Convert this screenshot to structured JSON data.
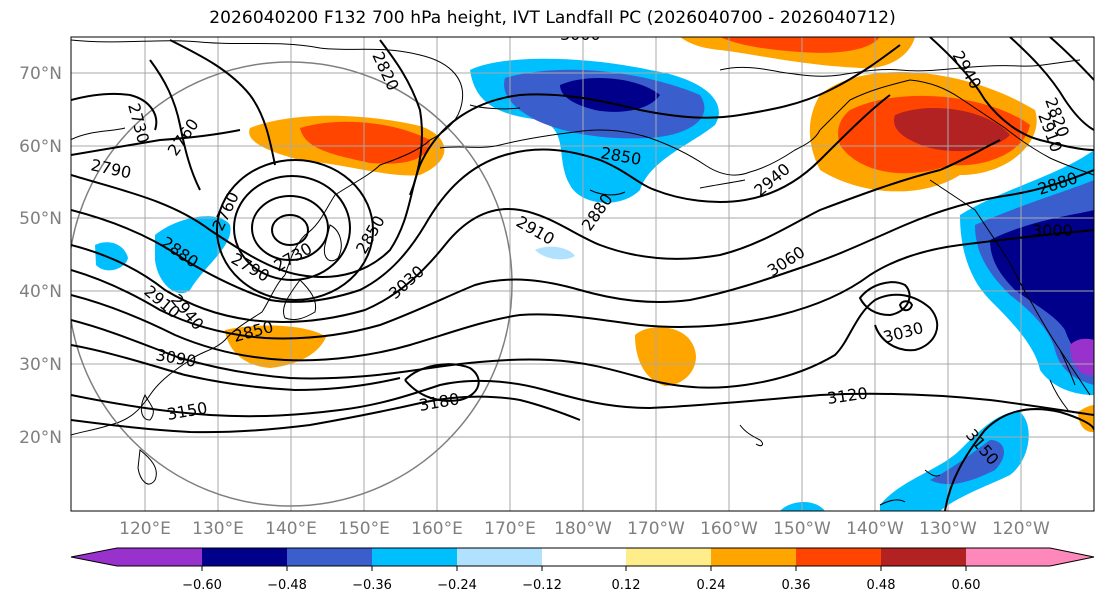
{
  "title": "2026040200 F132 700 hPa height, IVT Landfall PC (2026040700 - 2026040712)",
  "lat_labels": [
    "70°N",
    "60°N",
    "50°N",
    "40°N",
    "30°N",
    "20°N"
  ],
  "lon_labels": [
    "120°E",
    "130°E",
    "140°E",
    "150°E",
    "160°E",
    "170°E",
    "180°W",
    "170°W",
    "160°W",
    "150°W",
    "140°W",
    "130°W",
    "120°W"
  ],
  "contour_labels": [
    "2730",
    "2760",
    "2790",
    "2820",
    "2850",
    "2880",
    "2910",
    "2940",
    "2820",
    "2850",
    "2910",
    "2940",
    "2880",
    "3000",
    "2760",
    "2880",
    "2910",
    "2730",
    "2790",
    "2850",
    "3030",
    "3060",
    "3030",
    "3090",
    "3150",
    "3180",
    "3120",
    "3150",
    "2940",
    "3000"
  ],
  "colorbar": {
    "colors": [
      "#9932cc",
      "#00008b",
      "#3a5fcd",
      "#00bfff",
      "#b0e2ff",
      "#ffffff",
      "#ffec8b",
      "#ffa500",
      "#ff4500",
      "#b22222",
      "#ff88bb"
    ],
    "ticks": [
      "−0.60",
      "−0.48",
      "−0.36",
      "−0.24",
      "−0.12",
      "0.12",
      "0.24",
      "0.36",
      "0.48",
      "0.60"
    ]
  }
}
